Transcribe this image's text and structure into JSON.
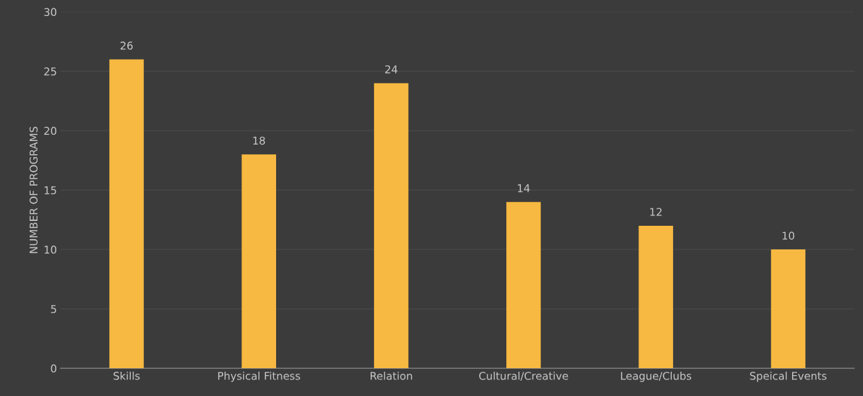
{
  "chart_data": {
    "type": "bar",
    "ylabel": "NUMBER OF PROGRAMS",
    "categories": [
      "Skills",
      "Physical Fitness",
      "Relation",
      "Cultural/Creative",
      "League/Clubs",
      "Speical Events"
    ],
    "values": [
      26,
      18,
      24,
      14,
      12,
      10
    ],
    "color": "#f7b941",
    "ylim": [
      0,
      30
    ],
    "yticks": [
      0,
      5,
      10,
      15,
      20,
      25,
      30
    ],
    "grid": "y",
    "data_labels": true
  }
}
